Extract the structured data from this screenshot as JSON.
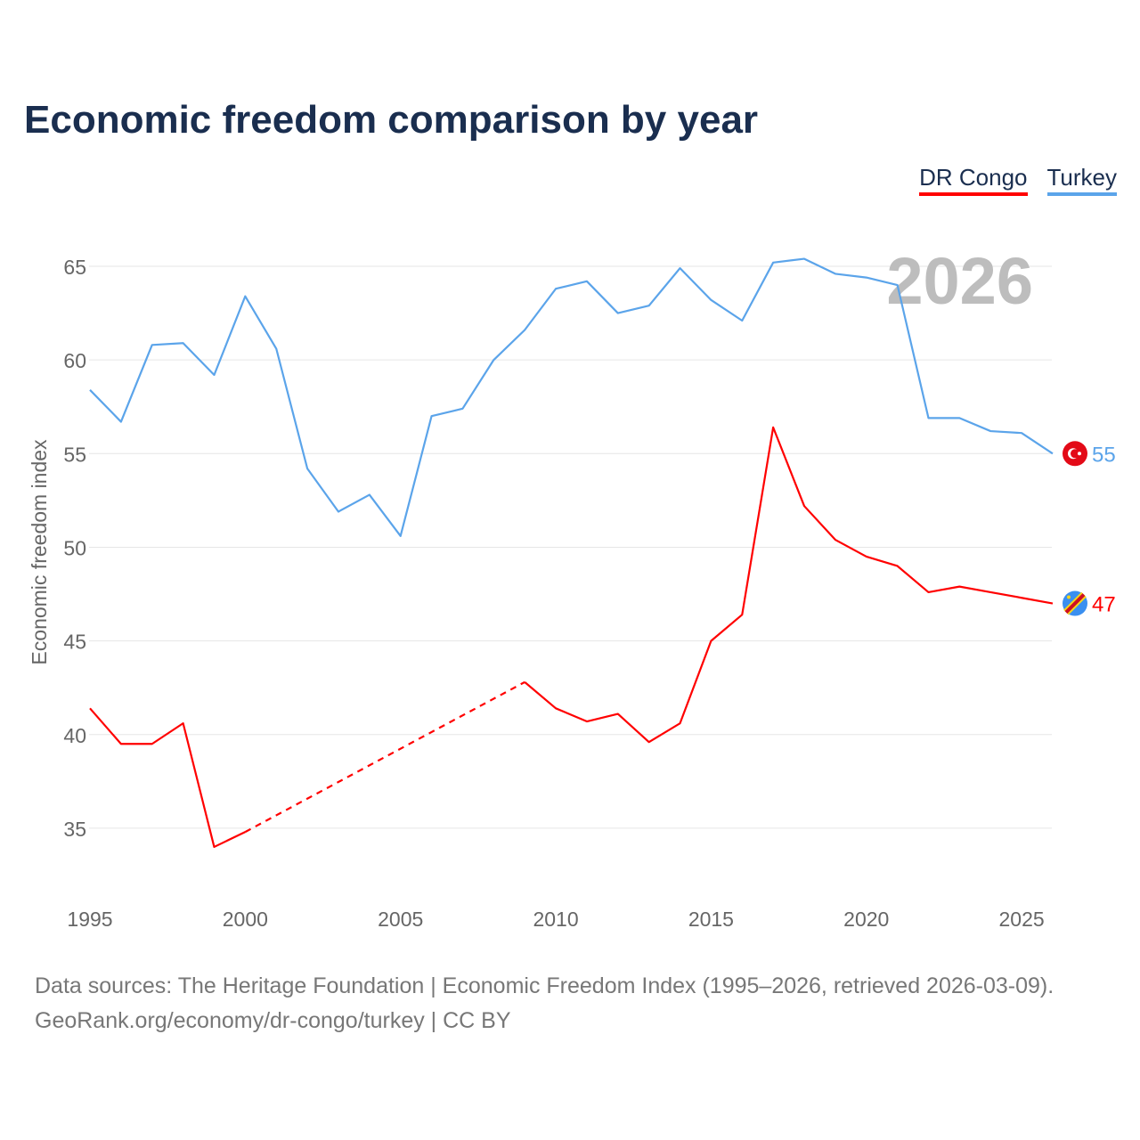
{
  "chart_data": {
    "type": "line",
    "title": "Economic freedom comparison by year",
    "xlabel": "",
    "ylabel": "Economic freedom index",
    "xlim": [
      1995,
      2026
    ],
    "ylim": [
      31,
      67
    ],
    "x_ticks": [
      "1995",
      "2000",
      "2005",
      "2010",
      "2015",
      "2020",
      "2025"
    ],
    "y_ticks": [
      "35",
      "40",
      "45",
      "50",
      "55",
      "60",
      "65"
    ],
    "grid": true,
    "legend_position": "top-right",
    "year_watermark": "2026",
    "x": [
      1995,
      1996,
      1997,
      1998,
      1999,
      2000,
      2001,
      2002,
      2003,
      2004,
      2005,
      2006,
      2007,
      2008,
      2009,
      2010,
      2011,
      2012,
      2013,
      2014,
      2015,
      2016,
      2017,
      2018,
      2019,
      2020,
      2021,
      2022,
      2023,
      2024,
      2025,
      2026
    ],
    "series": [
      {
        "name": "DR Congo",
        "color": "#ff0000",
        "end_label": "47",
        "values": [
          41.4,
          39.5,
          39.5,
          40.6,
          34.0,
          34.8,
          null,
          null,
          null,
          null,
          null,
          null,
          null,
          null,
          42.8,
          41.4,
          40.7,
          41.1,
          39.6,
          40.6,
          45.0,
          46.4,
          56.4,
          52.2,
          50.4,
          49.5,
          49.0,
          47.6,
          47.9,
          47.6,
          47.3,
          47.0
        ]
      },
      {
        "name": "Turkey",
        "color": "#5ba4ea",
        "end_label": "55",
        "values": [
          58.4,
          56.7,
          60.8,
          60.9,
          59.2,
          63.4,
          60.6,
          54.2,
          51.9,
          52.8,
          50.6,
          57.0,
          57.4,
          60.0,
          61.6,
          63.8,
          64.2,
          62.5,
          62.9,
          64.9,
          63.2,
          62.1,
          65.2,
          65.4,
          64.6,
          64.4,
          64.0,
          56.9,
          56.9,
          56.2,
          56.1,
          55.0
        ]
      }
    ]
  },
  "legend": {
    "items": [
      "DR Congo",
      "Turkey"
    ]
  },
  "source": {
    "line1": "Data sources: The Heritage Foundation | Economic Freedom Index (1995–2026, retrieved 2026-03-09).",
    "line2": "GeoRank.org/economy/dr-congo/turkey | CC BY"
  }
}
